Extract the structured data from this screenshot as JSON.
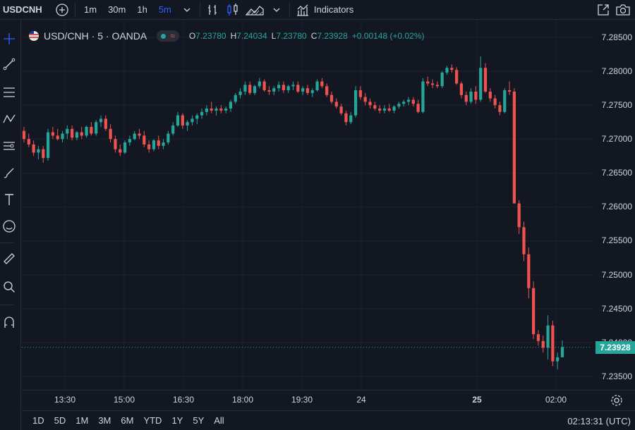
{
  "toolbar": {
    "symbol": "USDCNH",
    "intervals": [
      "1m",
      "30m",
      "1h",
      "5m"
    ],
    "active_interval": "5m",
    "indicators_label": "Indicators"
  },
  "legend": {
    "title": "USD/CNH · 5 · OANDA",
    "open_label": "O",
    "open": "7.23780",
    "high_label": "H",
    "high": "7.24034",
    "low_label": "L",
    "low": "7.23780",
    "close_label": "C",
    "close": "7.23928",
    "change": "+0.00148 (+0.02%)"
  },
  "price_axis": {
    "labels": [
      "7.28500",
      "7.28000",
      "7.27500",
      "7.27000",
      "7.26500",
      "7.26000",
      "7.25500",
      "7.25000",
      "7.24500",
      "7.24000",
      "7.23500"
    ],
    "current": "7.23928"
  },
  "time_axis": {
    "labels": [
      "13:30",
      "15:00",
      "16:30",
      "18:00",
      "19:30",
      "24",
      "25",
      "02:00"
    ]
  },
  "ranges": [
    "1D",
    "5D",
    "1M",
    "3M",
    "6M",
    "YTD",
    "1Y",
    "5Y",
    "All"
  ],
  "clock": "02:13:31 (UTC)",
  "colors": {
    "up": "#26a69a",
    "down": "#ef5350",
    "bg": "#131722",
    "grid": "#1e222d",
    "accent": "#2962ff"
  },
  "chart_data": {
    "type": "candlestick",
    "ylim": [
      7.233,
      7.2875
    ],
    "last": 7.23928,
    "series": [
      [
        7.2712,
        7.2718,
        7.2695,
        7.27
      ],
      [
        7.27,
        7.2708,
        7.2688,
        7.2692
      ],
      [
        7.2692,
        7.2698,
        7.2675,
        7.268
      ],
      [
        7.268,
        7.269,
        7.267,
        7.2685
      ],
      [
        7.2685,
        7.269,
        7.2665,
        7.2672
      ],
      [
        7.2672,
        7.2715,
        7.2668,
        7.271
      ],
      [
        7.271,
        7.2718,
        7.27,
        7.2705
      ],
      [
        7.2705,
        7.2715,
        7.2698,
        7.27
      ],
      [
        7.27,
        7.2712,
        7.2695,
        7.2708
      ],
      [
        7.2708,
        7.272,
        7.27,
        7.2715
      ],
      [
        7.2715,
        7.272,
        7.2698,
        7.2702
      ],
      [
        7.2702,
        7.2712,
        7.2698,
        7.271
      ],
      [
        7.271,
        7.2718,
        7.27,
        7.2705
      ],
      [
        7.2705,
        7.272,
        7.2702,
        7.2718
      ],
      [
        7.2718,
        7.2725,
        7.2705,
        7.2708
      ],
      [
        7.2708,
        7.2728,
        7.2705,
        7.2725
      ],
      [
        7.2725,
        7.2735,
        7.2718,
        7.273
      ],
      [
        7.273,
        7.2735,
        7.2712,
        7.2715
      ],
      [
        7.2715,
        7.2722,
        7.2695,
        7.27
      ],
      [
        7.27,
        7.2705,
        7.268,
        7.2685
      ],
      [
        7.2685,
        7.2692,
        7.2675,
        7.268
      ],
      [
        7.268,
        7.2698,
        7.2678,
        7.2695
      ],
      [
        7.2695,
        7.2705,
        7.269,
        7.27
      ],
      [
        7.27,
        7.2712,
        7.2698,
        7.2708
      ],
      [
        7.2708,
        7.2715,
        7.27,
        7.2705
      ],
      [
        7.2705,
        7.2712,
        7.2688,
        7.2692
      ],
      [
        7.2692,
        7.2698,
        7.268,
        7.2685
      ],
      [
        7.2685,
        7.27,
        7.2682,
        7.2698
      ],
      [
        7.2698,
        7.2705,
        7.2685,
        7.269
      ],
      [
        7.269,
        7.27,
        7.2685,
        7.2695
      ],
      [
        7.2695,
        7.2712,
        7.2692,
        7.2708
      ],
      [
        7.2708,
        7.2725,
        7.2705,
        7.272
      ],
      [
        7.272,
        7.274,
        7.2718,
        7.2735
      ],
      [
        7.2735,
        7.2738,
        7.2715,
        7.272
      ],
      [
        7.272,
        7.2728,
        7.2712,
        7.2725
      ],
      [
        7.2725,
        7.2735,
        7.272,
        7.273
      ],
      [
        7.273,
        7.2738,
        7.2722,
        7.2735
      ],
      [
        7.2735,
        7.2745,
        7.273,
        7.274
      ],
      [
        7.274,
        7.275,
        7.2735,
        7.2745
      ],
      [
        7.2745,
        7.2755,
        7.2738,
        7.2742
      ],
      [
        7.2742,
        7.2748,
        7.2735,
        7.2745
      ],
      [
        7.2745,
        7.275,
        7.2738,
        7.2742
      ],
      [
        7.2742,
        7.2748,
        7.2738,
        7.2745
      ],
      [
        7.2745,
        7.2758,
        7.274,
        7.2755
      ],
      [
        7.2755,
        7.2768,
        7.2752,
        7.2765
      ],
      [
        7.2765,
        7.2775,
        7.276,
        7.277
      ],
      [
        7.277,
        7.2785,
        7.2765,
        7.278
      ],
      [
        7.278,
        7.2785,
        7.2765,
        7.2768
      ],
      [
        7.2768,
        7.278,
        7.2765,
        7.2778
      ],
      [
        7.2778,
        7.279,
        7.2775,
        7.2785
      ],
      [
        7.2785,
        7.2788,
        7.277,
        7.2772
      ],
      [
        7.2772,
        7.2778,
        7.2765,
        7.277
      ],
      [
        7.277,
        7.2778,
        7.2765,
        7.2775
      ],
      [
        7.2775,
        7.2785,
        7.277,
        7.278
      ],
      [
        7.278,
        7.2785,
        7.2768,
        7.2772
      ],
      [
        7.2772,
        7.278,
        7.2768,
        7.2778
      ],
      [
        7.2778,
        7.2785,
        7.2772,
        7.278
      ],
      [
        7.278,
        7.2785,
        7.2768,
        7.277
      ],
      [
        7.277,
        7.2778,
        7.2765,
        7.2775
      ],
      [
        7.2775,
        7.278,
        7.2765,
        7.2768
      ],
      [
        7.2768,
        7.2775,
        7.2762,
        7.2772
      ],
      [
        7.2772,
        7.2788,
        7.277,
        7.2785
      ],
      [
        7.2785,
        7.279,
        7.2775,
        7.2778
      ],
      [
        7.2778,
        7.2782,
        7.2762,
        7.2765
      ],
      [
        7.2765,
        7.277,
        7.2752,
        7.2755
      ],
      [
        7.2755,
        7.276,
        7.2745,
        7.2748
      ],
      [
        7.2748,
        7.2752,
        7.2735,
        7.2738
      ],
      [
        7.2738,
        7.2742,
        7.272,
        7.2725
      ],
      [
        7.2725,
        7.274,
        7.2722,
        7.2735
      ],
      [
        7.2735,
        7.2778,
        7.2732,
        7.2772
      ],
      [
        7.2772,
        7.2778,
        7.2758,
        7.2762
      ],
      [
        7.2762,
        7.2768,
        7.275,
        7.2755
      ],
      [
        7.2755,
        7.276,
        7.2745,
        7.275
      ],
      [
        7.275,
        7.2755,
        7.2742,
        7.2745
      ],
      [
        7.2745,
        7.275,
        7.2738,
        7.2742
      ],
      [
        7.2742,
        7.275,
        7.2738,
        7.2745
      ],
      [
        7.2745,
        7.2752,
        7.274,
        7.2742
      ],
      [
        7.2742,
        7.275,
        7.2738,
        7.2748
      ],
      [
        7.2748,
        7.2755,
        7.2745,
        7.2752
      ],
      [
        7.2752,
        7.2758,
        7.2748,
        7.2755
      ],
      [
        7.2755,
        7.2762,
        7.275,
        7.2758
      ],
      [
        7.2758,
        7.2762,
        7.2748,
        7.2752
      ],
      [
        7.2752,
        7.2758,
        7.2738,
        7.274
      ],
      [
        7.274,
        7.279,
        7.2738,
        7.2785
      ],
      [
        7.2785,
        7.2792,
        7.2778,
        7.2782
      ],
      [
        7.2782,
        7.2788,
        7.2775,
        7.278
      ],
      [
        7.278,
        7.2785,
        7.2775,
        7.2778
      ],
      [
        7.2778,
        7.28,
        7.2775,
        7.2798
      ],
      [
        7.2798,
        7.2808,
        7.2795,
        7.2805
      ],
      [
        7.2805,
        7.281,
        7.2798,
        7.2802
      ],
      [
        7.2802,
        7.2806,
        7.278,
        7.2782
      ],
      [
        7.2782,
        7.2785,
        7.276,
        7.2765
      ],
      [
        7.2765,
        7.277,
        7.275,
        7.2755
      ],
      [
        7.2755,
        7.2775,
        7.2752,
        7.277
      ],
      [
        7.277,
        7.2778,
        7.2752,
        7.2758
      ],
      [
        7.2758,
        7.2822,
        7.2755,
        7.2805
      ],
      [
        7.2805,
        7.2812,
        7.2768,
        7.277
      ],
      [
        7.277,
        7.2775,
        7.2755,
        7.276
      ],
      [
        7.276,
        7.2765,
        7.2745,
        7.275
      ],
      [
        7.275,
        7.2755,
        7.2735,
        7.274
      ],
      [
        7.274,
        7.2775,
        7.2738,
        7.2772
      ],
      [
        7.2772,
        7.2785,
        7.2765,
        7.277
      ],
      [
        7.277,
        7.2775,
        7.27,
        7.2605
      ],
      [
        7.2605,
        7.261,
        7.256,
        7.257
      ],
      [
        7.257,
        7.2578,
        7.252,
        7.253
      ],
      [
        7.253,
        7.254,
        7.2465,
        7.248
      ],
      [
        7.248,
        7.249,
        7.2405,
        7.2412
      ],
      [
        7.2412,
        7.2418,
        7.2395,
        7.2402
      ],
      [
        7.2402,
        7.241,
        7.2385,
        7.2392
      ],
      [
        7.2392,
        7.244,
        7.2375,
        7.2425
      ],
      [
        7.2425,
        7.2432,
        7.2365,
        7.2372
      ],
      [
        7.2372,
        7.2385,
        7.236,
        7.2378
      ],
      [
        7.2378,
        7.2403,
        7.2378,
        7.2393
      ]
    ]
  }
}
